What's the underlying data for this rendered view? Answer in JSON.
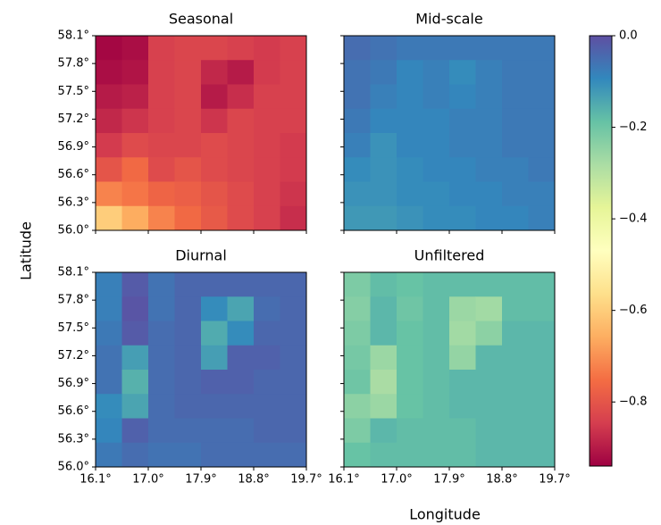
{
  "chart_data": {
    "type": "heatmap-grid",
    "colormap": "Spectral",
    "clim": [
      -0.94,
      0.0
    ],
    "xlabel": "Longitude",
    "ylabel": "Latitude",
    "xlim": [
      16.1,
      19.7
    ],
    "ylim": [
      56.0,
      58.1
    ],
    "xticks": [
      {
        "value": 16.1,
        "label": "16.1°"
      },
      {
        "value": 17.0,
        "label": "17.0°"
      },
      {
        "value": 17.9,
        "label": "17.9°"
      },
      {
        "value": 18.8,
        "label": "18.8°"
      },
      {
        "value": 19.7,
        "label": "19.7°"
      }
    ],
    "yticks": [
      {
        "value": 56.0,
        "label": "56.0°"
      },
      {
        "value": 56.3,
        "label": "56.3°"
      },
      {
        "value": 56.6,
        "label": "56.6°"
      },
      {
        "value": 56.9,
        "label": "56.9°"
      },
      {
        "value": 57.2,
        "label": "57.2°"
      },
      {
        "value": 57.5,
        "label": "57.5°"
      },
      {
        "value": 57.8,
        "label": "57.8°"
      },
      {
        "value": 58.1,
        "label": "58.1°"
      }
    ],
    "colorbar_ticks": [
      {
        "value": 0.0,
        "label": "0.0"
      },
      {
        "value": -0.2,
        "label": "−0.2"
      },
      {
        "value": -0.4,
        "label": "−0.4"
      },
      {
        "value": -0.6,
        "label": "−0.6"
      },
      {
        "value": -0.8,
        "label": "−0.8"
      }
    ],
    "panels": [
      {
        "title": "Seasonal",
        "values": [
          [
            -0.93,
            -0.92,
            -0.84,
            -0.83,
            -0.83,
            -0.84,
            -0.85,
            -0.84
          ],
          [
            -0.92,
            -0.91,
            -0.84,
            -0.83,
            -0.88,
            -0.9,
            -0.85,
            -0.84
          ],
          [
            -0.9,
            -0.89,
            -0.84,
            -0.83,
            -0.9,
            -0.87,
            -0.84,
            -0.84
          ],
          [
            -0.88,
            -0.86,
            -0.84,
            -0.83,
            -0.86,
            -0.83,
            -0.84,
            -0.84
          ],
          [
            -0.85,
            -0.82,
            -0.83,
            -0.83,
            -0.82,
            -0.83,
            -0.84,
            -0.85
          ],
          [
            -0.8,
            -0.76,
            -0.82,
            -0.8,
            -0.82,
            -0.83,
            -0.84,
            -0.85
          ],
          [
            -0.72,
            -0.74,
            -0.77,
            -0.78,
            -0.8,
            -0.82,
            -0.84,
            -0.86
          ],
          [
            -0.6,
            -0.66,
            -0.72,
            -0.76,
            -0.79,
            -0.82,
            -0.84,
            -0.87
          ]
        ]
      },
      {
        "title": "Mid-scale",
        "values": [
          [
            -0.05,
            -0.06,
            -0.07,
            -0.07,
            -0.07,
            -0.07,
            -0.07,
            -0.07
          ],
          [
            -0.06,
            -0.07,
            -0.09,
            -0.08,
            -0.1,
            -0.08,
            -0.07,
            -0.07
          ],
          [
            -0.06,
            -0.08,
            -0.09,
            -0.08,
            -0.09,
            -0.08,
            -0.07,
            -0.07
          ],
          [
            -0.07,
            -0.09,
            -0.09,
            -0.09,
            -0.08,
            -0.08,
            -0.07,
            -0.07
          ],
          [
            -0.08,
            -0.11,
            -0.09,
            -0.09,
            -0.08,
            -0.08,
            -0.07,
            -0.07
          ],
          [
            -0.1,
            -0.11,
            -0.1,
            -0.09,
            -0.09,
            -0.08,
            -0.08,
            -0.07
          ],
          [
            -0.11,
            -0.11,
            -0.1,
            -0.1,
            -0.09,
            -0.09,
            -0.08,
            -0.08
          ],
          [
            -0.12,
            -0.12,
            -0.11,
            -0.1,
            -0.1,
            -0.09,
            -0.09,
            -0.08
          ]
        ]
      },
      {
        "title": "Diurnal",
        "values": [
          [
            -0.08,
            -0.02,
            -0.06,
            -0.04,
            -0.04,
            -0.04,
            -0.04,
            -0.04
          ],
          [
            -0.08,
            -0.01,
            -0.06,
            -0.04,
            -0.1,
            -0.14,
            -0.05,
            -0.04
          ],
          [
            -0.07,
            -0.02,
            -0.05,
            -0.04,
            -0.15,
            -0.1,
            -0.04,
            -0.04
          ],
          [
            -0.06,
            -0.13,
            -0.05,
            -0.04,
            -0.13,
            -0.03,
            -0.03,
            -0.04
          ],
          [
            -0.06,
            -0.16,
            -0.05,
            -0.04,
            -0.03,
            -0.03,
            -0.04,
            -0.04
          ],
          [
            -0.1,
            -0.14,
            -0.05,
            -0.04,
            -0.04,
            -0.04,
            -0.04,
            -0.04
          ],
          [
            -0.09,
            -0.03,
            -0.05,
            -0.05,
            -0.05,
            -0.05,
            -0.04,
            -0.04
          ],
          [
            -0.07,
            -0.05,
            -0.06,
            -0.06,
            -0.05,
            -0.05,
            -0.05,
            -0.05
          ]
        ]
      },
      {
        "title": "Unfiltered",
        "values": [
          [
            -0.22,
            -0.18,
            -0.19,
            -0.18,
            -0.18,
            -0.18,
            -0.18,
            -0.18
          ],
          [
            -0.23,
            -0.17,
            -0.2,
            -0.18,
            -0.26,
            -0.27,
            -0.18,
            -0.18
          ],
          [
            -0.22,
            -0.17,
            -0.19,
            -0.18,
            -0.27,
            -0.24,
            -0.17,
            -0.17
          ],
          [
            -0.21,
            -0.26,
            -0.19,
            -0.18,
            -0.25,
            -0.17,
            -0.17,
            -0.17
          ],
          [
            -0.2,
            -0.28,
            -0.19,
            -0.18,
            -0.17,
            -0.17,
            -0.17,
            -0.17
          ],
          [
            -0.24,
            -0.26,
            -0.19,
            -0.18,
            -0.17,
            -0.17,
            -0.17,
            -0.17
          ],
          [
            -0.22,
            -0.17,
            -0.18,
            -0.18,
            -0.18,
            -0.17,
            -0.17,
            -0.17
          ],
          [
            -0.19,
            -0.18,
            -0.18,
            -0.18,
            -0.18,
            -0.17,
            -0.17,
            -0.17
          ]
        ]
      }
    ]
  }
}
